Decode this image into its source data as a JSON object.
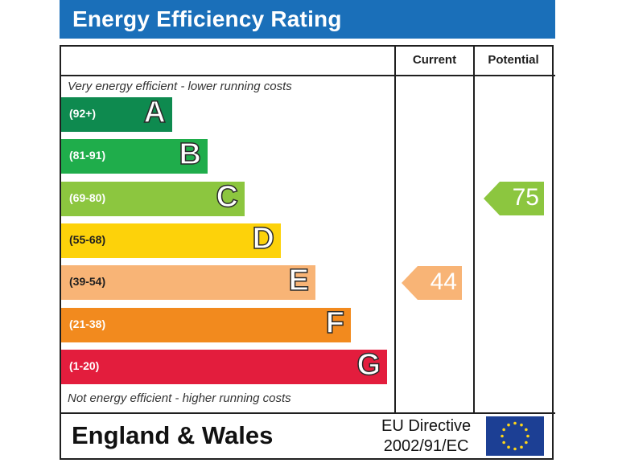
{
  "header": {
    "title": "Energy Efficiency Rating"
  },
  "columns": {
    "current": "Current",
    "potential": "Potential"
  },
  "notes": {
    "top": "Very energy efficient - lower running costs",
    "bottom": "Not energy efficient - higher running costs"
  },
  "chart_data": {
    "type": "bar",
    "title": "Energy Efficiency Rating",
    "bands": [
      {
        "letter": "A",
        "range": "(92+)",
        "color": "#0e8a4f"
      },
      {
        "letter": "B",
        "range": "(81-91)",
        "color": "#1fad4b"
      },
      {
        "letter": "C",
        "range": "(69-80)",
        "color": "#8cc63f"
      },
      {
        "letter": "D",
        "range": "(55-68)",
        "color": "#fdd20a"
      },
      {
        "letter": "E",
        "range": "(39-54)",
        "color": "#f8b476"
      },
      {
        "letter": "F",
        "range": "(21-38)",
        "color": "#f28a1e"
      },
      {
        "letter": "G",
        "range": "(1-20)",
        "color": "#e31d3d"
      }
    ],
    "current": {
      "value": "44",
      "band": "E",
      "color": "#f8b476"
    },
    "potential": {
      "value": "75",
      "band": "C",
      "color": "#8cc63f"
    }
  },
  "footer": {
    "country": "England & Wales",
    "directive_line1": "EU Directive",
    "directive_line2": "2002/91/EC",
    "flag_icon": "eu-flag-icon"
  }
}
